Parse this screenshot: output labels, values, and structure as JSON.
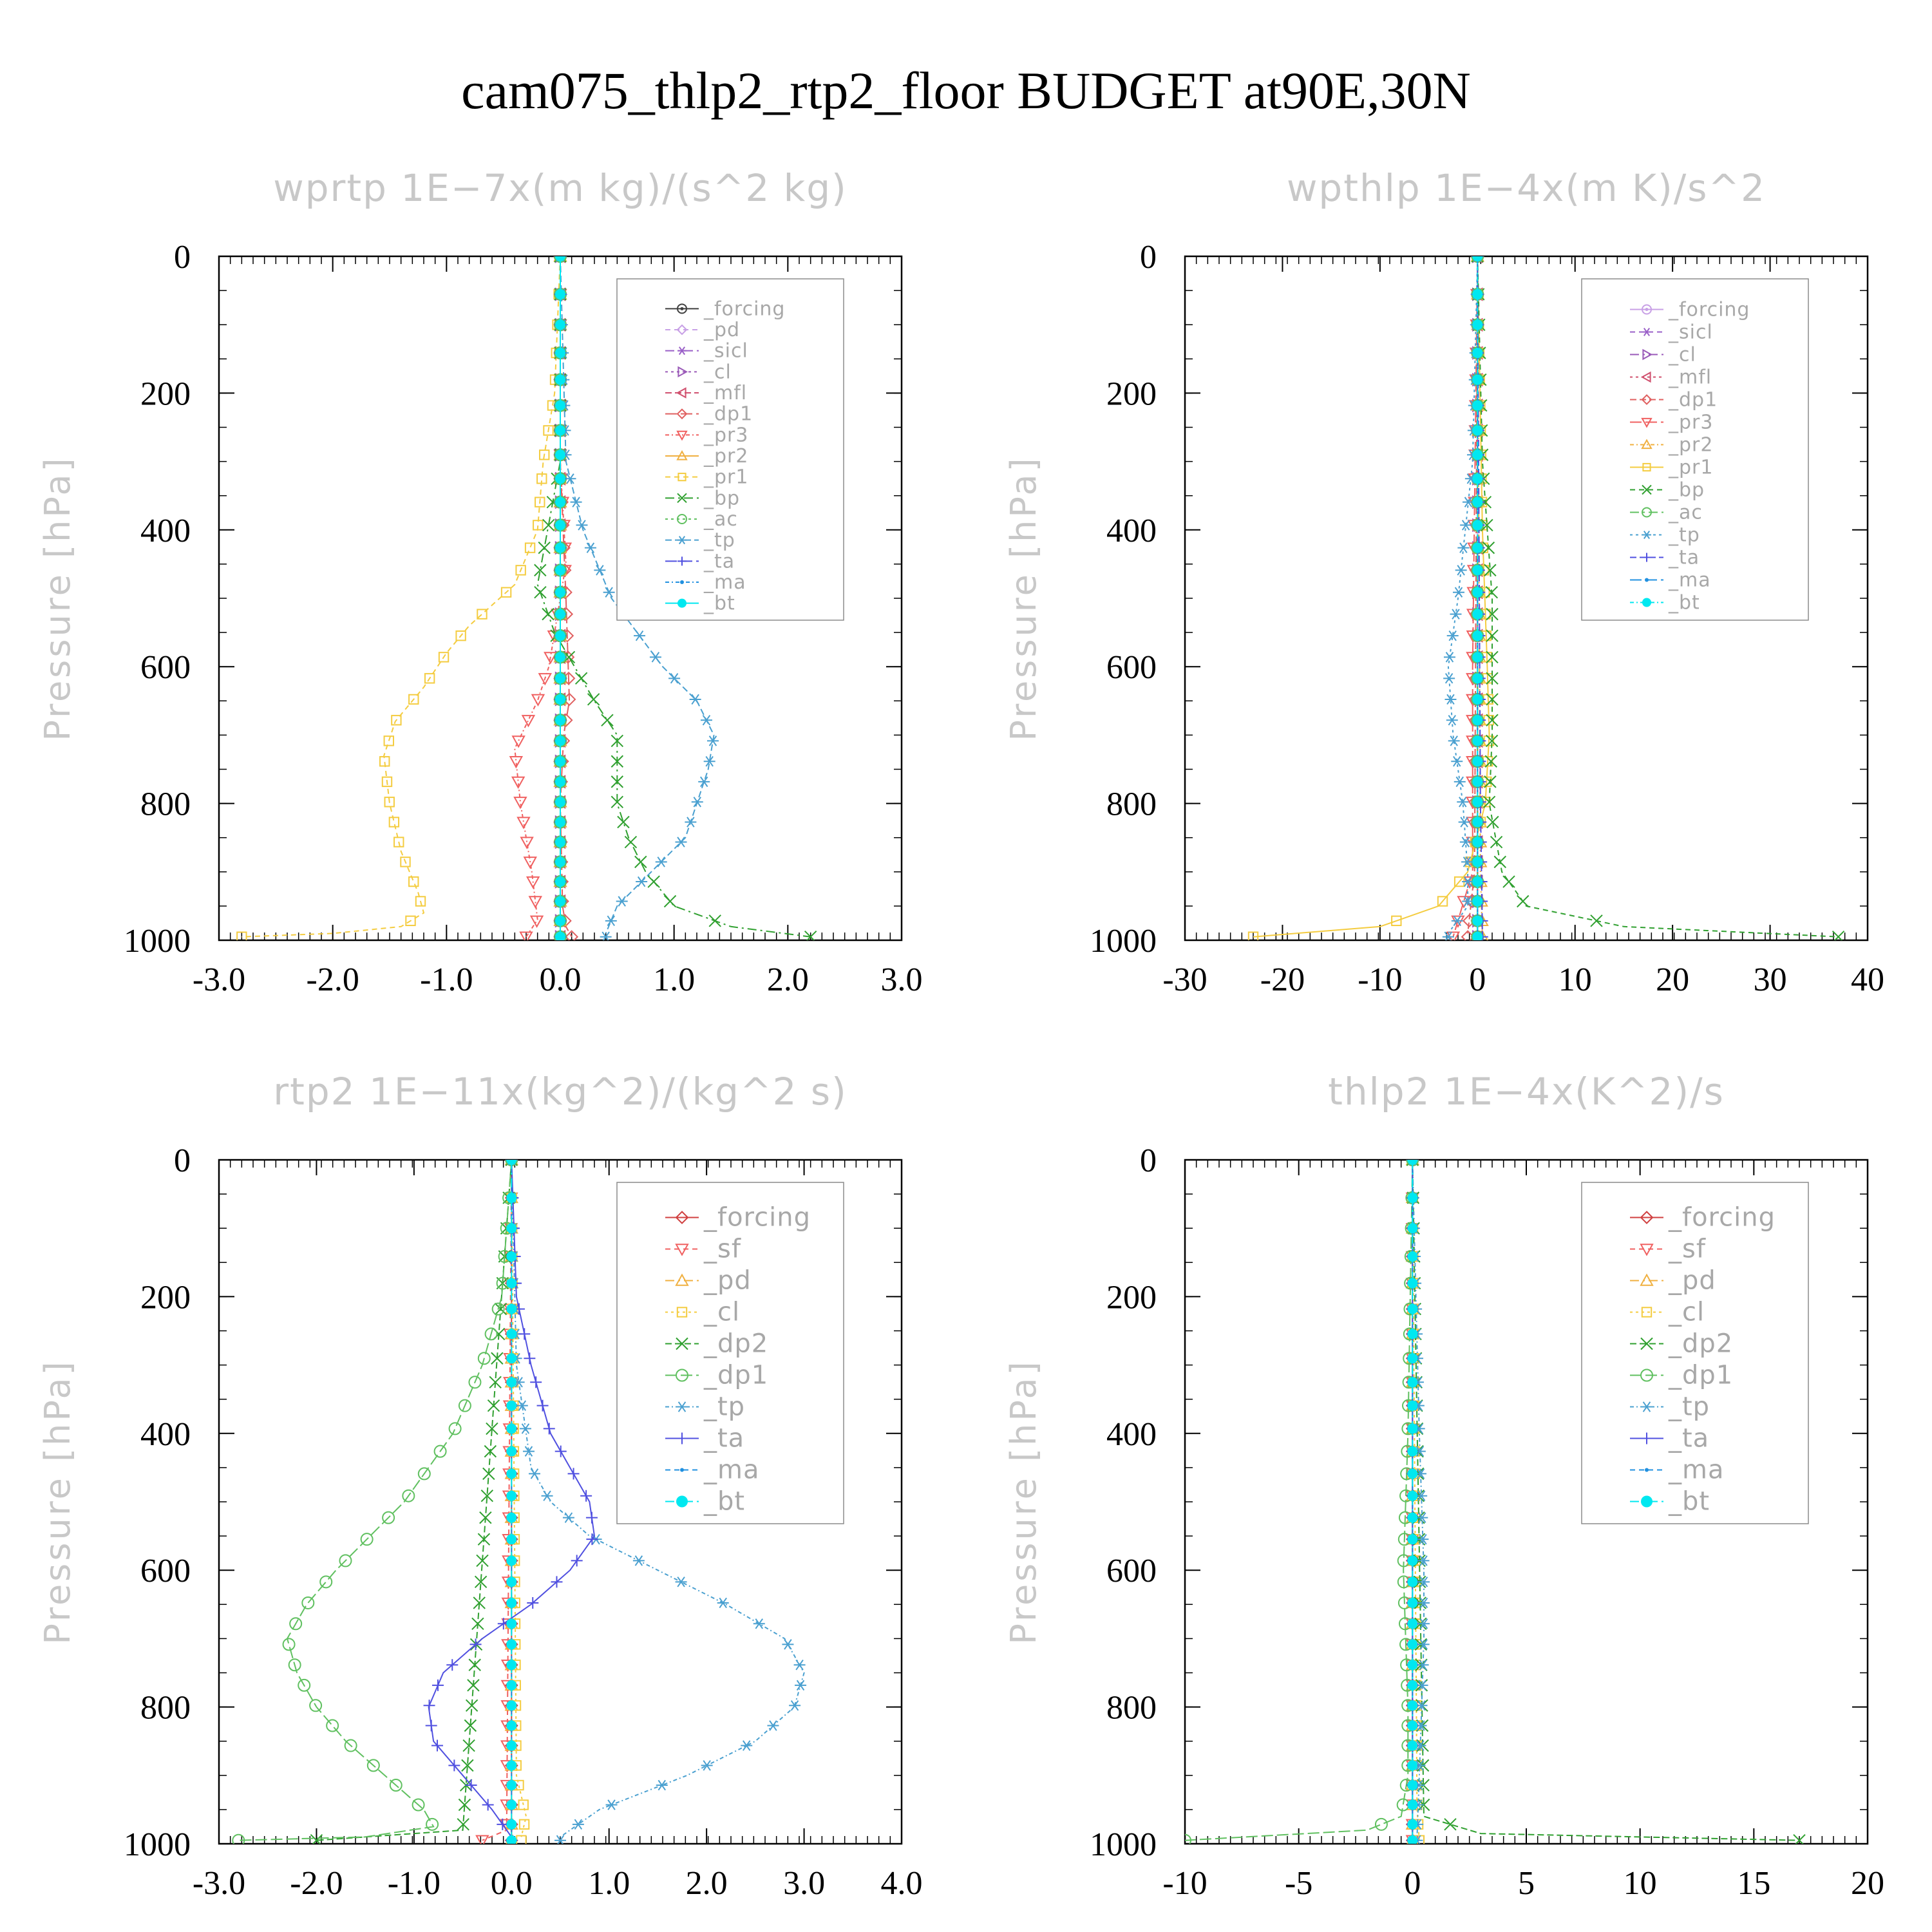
{
  "figure_title": "cam075_thlp2_rtp2_floor  BUDGET at90E,30N",
  "chart_data": [
    {
      "type": "line",
      "title": "wprtp  1E−7x(m kg)/(s^2 kg)",
      "ylabel": "Pressure [hPa]",
      "xlim": [
        -3.0,
        3.0
      ],
      "ylim": [
        1000,
        0
      ],
      "xticks": [
        "-3.0",
        "-2.0",
        "-1.0",
        "0.0",
        "1.0",
        "2.0",
        "3.0"
      ],
      "xtick_values": [
        -3,
        -2,
        -1,
        0,
        1,
        2,
        3
      ],
      "yticks": [
        "0",
        "200",
        "400",
        "600",
        "800",
        "1000"
      ],
      "ytick_values": [
        0,
        200,
        400,
        600,
        800,
        1000
      ],
      "legend_position": "top-right",
      "series": [
        {
          "name": "_forcing",
          "color": "#404040",
          "marker": "circle-dot",
          "p": [
            0,
            1000
          ],
          "x": [
            0,
            0
          ]
        },
        {
          "name": "_pd",
          "color": "#c8a0e6",
          "marker": "diamond",
          "p": [
            0,
            1000
          ],
          "x": [
            0,
            0
          ]
        },
        {
          "name": "_sicl",
          "color": "#9a60c8",
          "marker": "star",
          "p": [
            0,
            1000
          ],
          "x": [
            0,
            0
          ]
        },
        {
          "name": "_cl",
          "color": "#9a5ab8",
          "marker": "tri-right",
          "p": [
            0,
            1000
          ],
          "x": [
            0,
            0
          ]
        },
        {
          "name": "_mfl",
          "color": "#d0506e",
          "marker": "tri-left",
          "p": [
            0,
            1000
          ],
          "x": [
            0,
            0
          ]
        },
        {
          "name": "_dp1",
          "color": "#e06060",
          "marker": "diamond",
          "p": [
            0,
            300,
            500,
            650,
            700,
            800,
            950,
            980,
            995
          ],
          "x": [
            0,
            0,
            0.05,
            0.08,
            0.03,
            0,
            0.02,
            0.05,
            0.1
          ]
        },
        {
          "name": "_pr3",
          "color": "#f06060",
          "marker": "tri-down",
          "p": [
            0,
            300,
            450,
            600,
            650,
            720,
            800,
            900,
            970,
            995
          ],
          "x": [
            0,
            0,
            0.05,
            -0.1,
            -0.2,
            -0.4,
            -0.35,
            -0.25,
            -0.2,
            -0.3
          ]
        },
        {
          "name": "_pr2",
          "color": "#f0b040",
          "marker": "tri-up",
          "p": [
            0,
            500,
            900,
            995
          ],
          "x": [
            0,
            0,
            0,
            0
          ]
        },
        {
          "name": "_pr1",
          "color": "#f4cc40",
          "marker": "square",
          "p": [
            0,
            200,
            300,
            400,
            480,
            540,
            580,
            630,
            680,
            730,
            800,
            870,
            930,
            960,
            980,
            990,
            995
          ],
          "x": [
            0,
            -0.05,
            -0.15,
            -0.2,
            -0.4,
            -0.8,
            -1.0,
            -1.2,
            -1.45,
            -1.55,
            -1.5,
            -1.4,
            -1.25,
            -1.2,
            -1.4,
            -2.0,
            -2.8
          ]
        },
        {
          "name": "_bp",
          "color": "#30a030",
          "marker": "cross",
          "p": [
            0,
            300,
            480,
            550,
            650,
            700,
            750,
            800,
            850,
            900,
            950,
            980,
            995
          ],
          "x": [
            0,
            0,
            -0.2,
            -0.05,
            0.3,
            0.5,
            0.5,
            0.5,
            0.6,
            0.75,
            1.0,
            1.5,
            2.2
          ]
        },
        {
          "name": "_ac",
          "color": "#60c060",
          "marker": "circle",
          "p": [
            0,
            1000
          ],
          "x": [
            0,
            0
          ]
        },
        {
          "name": "_tp",
          "color": "#4aa0d0",
          "marker": "asterisk",
          "p": [
            0,
            300,
            400,
            500,
            600,
            650,
            700,
            750,
            800,
            850,
            900,
            950,
            990
          ],
          "x": [
            0,
            0.05,
            0.2,
            0.45,
            0.9,
            1.2,
            1.35,
            1.3,
            1.2,
            1.1,
            0.8,
            0.5,
            0.4
          ]
        },
        {
          "name": "_ta",
          "color": "#5050e0",
          "marker": "plus",
          "p": [
            0,
            1000
          ],
          "x": [
            0,
            0
          ]
        },
        {
          "name": "_ma",
          "color": "#2090e0",
          "marker": "dot",
          "p": [
            0,
            1000
          ],
          "x": [
            0,
            0
          ]
        },
        {
          "name": "_bt",
          "color": "#00e8f0",
          "marker": "filled-circle",
          "p": [
            0,
            1000
          ],
          "x": [
            0,
            0
          ]
        }
      ]
    },
    {
      "type": "line",
      "title": "wpthlp  1E−4x(m K)/s^2",
      "ylabel": "Pressure [hPa]",
      "xlim": [
        -30,
        40
      ],
      "ylim": [
        1000,
        0
      ],
      "xticks": [
        "-30",
        "-20",
        "-10",
        "0",
        "10",
        "20",
        "30",
        "40"
      ],
      "xtick_values": [
        -30,
        -20,
        -10,
        0,
        10,
        20,
        30,
        40
      ],
      "yticks": [
        "0",
        "200",
        "400",
        "600",
        "800",
        "1000"
      ],
      "ytick_values": [
        0,
        200,
        400,
        600,
        800,
        1000
      ],
      "legend_position": "top-right",
      "series": [
        {
          "name": "_forcing",
          "color": "#c8a0e6",
          "marker": "circle-dot",
          "p": [
            0,
            1000
          ],
          "x": [
            0,
            0
          ]
        },
        {
          "name": "_sicl",
          "color": "#9a60c8",
          "marker": "star",
          "p": [
            0,
            1000
          ],
          "x": [
            0,
            0
          ]
        },
        {
          "name": "_cl",
          "color": "#9a5ab8",
          "marker": "tri-right",
          "p": [
            0,
            1000
          ],
          "x": [
            0,
            0
          ]
        },
        {
          "name": "_mfl",
          "color": "#d0506e",
          "marker": "tri-left",
          "p": [
            0,
            1000
          ],
          "x": [
            0,
            0
          ]
        },
        {
          "name": "_dp1",
          "color": "#e06060",
          "marker": "diamond",
          "p": [
            0,
            900,
            990
          ],
          "x": [
            0,
            -0.3,
            -1.0
          ]
        },
        {
          "name": "_pr3",
          "color": "#f06060",
          "marker": "tri-down",
          "p": [
            0,
            600,
            900,
            995
          ],
          "x": [
            0,
            -0.5,
            -0.5,
            -2.5
          ]
        },
        {
          "name": "_pr2",
          "color": "#f0b040",
          "marker": "tri-up",
          "p": [
            0,
            900,
            995
          ],
          "x": [
            0,
            0.3,
            0.5
          ]
        },
        {
          "name": "_pr1",
          "color": "#f4cc40",
          "marker": "square",
          "p": [
            0,
            400,
            600,
            700,
            800,
            900,
            950,
            980,
            995
          ],
          "x": [
            0,
            0.5,
            1.0,
            1.2,
            0.8,
            -1.0,
            -4.0,
            -10.0,
            -23.0
          ]
        },
        {
          "name": "_bp",
          "color": "#30a030",
          "marker": "cross",
          "p": [
            0,
            300,
            500,
            700,
            800,
            900,
            950,
            980,
            995
          ],
          "x": [
            0,
            0.5,
            1.5,
            1.5,
            1.2,
            2.5,
            5.0,
            15.0,
            37.0
          ]
        },
        {
          "name": "_ac",
          "color": "#60c060",
          "marker": "circle",
          "p": [
            0,
            1000
          ],
          "x": [
            0,
            0
          ]
        },
        {
          "name": "_tp",
          "color": "#4aa0d0",
          "marker": "asterisk",
          "p": [
            0,
            300,
            500,
            600,
            700,
            800,
            900,
            950,
            990
          ],
          "x": [
            0,
            -0.5,
            -2.0,
            -3.0,
            -2.5,
            -1.5,
            -1.0,
            -1.0,
            -3.0
          ]
        },
        {
          "name": "_ta",
          "color": "#5050e0",
          "marker": "plus",
          "p": [
            0,
            800,
            990
          ],
          "x": [
            0,
            0.3,
            0.5
          ]
        },
        {
          "name": "_ma",
          "color": "#2090e0",
          "marker": "dot",
          "p": [
            0,
            1000
          ],
          "x": [
            0,
            0
          ]
        },
        {
          "name": "_bt",
          "color": "#00e8f0",
          "marker": "filled-circle",
          "p": [
            0,
            1000
          ],
          "x": [
            0,
            0
          ]
        }
      ]
    },
    {
      "type": "line",
      "title": "rtp2  1E−11x(kg^2)/(kg^2 s)",
      "ylabel": "Pressure [hPa]",
      "xlim": [
        -3.0,
        4.0
      ],
      "ylim": [
        1000,
        0
      ],
      "xticks": [
        "-3.0",
        "-2.0",
        "-1.0",
        "0.0",
        "1.0",
        "2.0",
        "3.0",
        "4.0"
      ],
      "xtick_values": [
        -3,
        -2,
        -1,
        0,
        1,
        2,
        3,
        4
      ],
      "yticks": [
        "0",
        "200",
        "400",
        "600",
        "800",
        "1000"
      ],
      "ytick_values": [
        0,
        200,
        400,
        600,
        800,
        1000
      ],
      "legend_position": "top-right",
      "series": [
        {
          "name": "_forcing",
          "color": "#d04040",
          "marker": "diamond",
          "p": [
            0,
            1000
          ],
          "x": [
            0,
            0
          ]
        },
        {
          "name": "_sf",
          "color": "#f06060",
          "marker": "tri-down",
          "p": [
            0,
            980,
            995
          ],
          "x": [
            0,
            -0.05,
            -0.3
          ]
        },
        {
          "name": "_pd",
          "color": "#f0b040",
          "marker": "tri-up",
          "p": [
            0,
            1000
          ],
          "x": [
            0,
            0
          ]
        },
        {
          "name": "_cl",
          "color": "#f4cc40",
          "marker": "square",
          "p": [
            0,
            900,
            960,
            990
          ],
          "x": [
            0,
            0.05,
            0.15,
            0.1
          ]
        },
        {
          "name": "_dp2",
          "color": "#30a030",
          "marker": "cross",
          "p": [
            0,
            980,
            995
          ],
          "x": [
            0,
            -0.5,
            -2.0
          ]
        },
        {
          "name": "_dp1",
          "color": "#60c060",
          "marker": "circle",
          "p": [
            0,
            200,
            300,
            400,
            500,
            600,
            650,
            700,
            750,
            800,
            850,
            900,
            950,
            975,
            990,
            995
          ],
          "x": [
            0,
            -0.1,
            -0.3,
            -0.6,
            -1.1,
            -1.8,
            -2.1,
            -2.3,
            -2.2,
            -2.0,
            -1.7,
            -1.3,
            -0.9,
            -0.8,
            -1.5,
            -2.8
          ]
        },
        {
          "name": "_tp",
          "color": "#4aa0d0",
          "marker": "asterisk",
          "p": [
            0,
            300,
            450,
            500,
            550,
            600,
            650,
            700,
            750,
            800,
            850,
            900,
            950,
            990
          ],
          "x": [
            0,
            0.05,
            0.2,
            0.4,
            0.8,
            1.5,
            2.2,
            2.8,
            3.0,
            2.9,
            2.5,
            1.8,
            0.9,
            0.5
          ]
        },
        {
          "name": "_ta",
          "color": "#5050e0",
          "marker": "plus",
          "p": [
            0,
            200,
            300,
            400,
            450,
            500,
            550,
            600,
            650,
            700,
            750,
            800,
            850,
            900,
            950,
            990
          ],
          "x": [
            0,
            0.05,
            0.2,
            0.4,
            0.6,
            0.8,
            0.85,
            0.6,
            0.2,
            -0.3,
            -0.7,
            -0.85,
            -0.8,
            -0.5,
            -0.2,
            0
          ]
        },
        {
          "name": "_ma",
          "color": "#2090e0",
          "marker": "dot",
          "p": [
            0,
            1000
          ],
          "x": [
            0,
            0
          ]
        },
        {
          "name": "_bt",
          "color": "#00e8f0",
          "marker": "filled-circle",
          "p": [
            0,
            1000
          ],
          "x": [
            0,
            0
          ]
        }
      ]
    },
    {
      "type": "line",
      "title": "thlp2  1E−4x(K^2)/s",
      "ylabel": "Pressure [hPa]",
      "xlim": [
        -10,
        20
      ],
      "ylim": [
        1000,
        0
      ],
      "xticks": [
        "-10",
        "-5",
        "0",
        "5",
        "10",
        "15",
        "20"
      ],
      "xtick_values": [
        -10,
        -5,
        0,
        5,
        10,
        15,
        20
      ],
      "yticks": [
        "0",
        "200",
        "400",
        "600",
        "800",
        "1000"
      ],
      "ytick_values": [
        0,
        200,
        400,
        600,
        800,
        1000
      ],
      "legend_position": "top-right",
      "series": [
        {
          "name": "_forcing",
          "color": "#d04040",
          "marker": "diamond",
          "p": [
            0,
            1000
          ],
          "x": [
            0,
            0
          ]
        },
        {
          "name": "_sf",
          "color": "#f06060",
          "marker": "tri-down",
          "p": [
            0,
            1000
          ],
          "x": [
            0,
            0
          ]
        },
        {
          "name": "_pd",
          "color": "#f0b040",
          "marker": "tri-up",
          "p": [
            0,
            1000
          ],
          "x": [
            0,
            0
          ]
        },
        {
          "name": "_cl",
          "color": "#f4cc40",
          "marker": "square",
          "p": [
            0,
            950,
            995
          ],
          "x": [
            0,
            0.2,
            0.3
          ]
        },
        {
          "name": "_dp2",
          "color": "#30a030",
          "marker": "cross",
          "p": [
            0,
            960,
            985,
            995
          ],
          "x": [
            0,
            0.5,
            3.0,
            17.0
          ]
        },
        {
          "name": "_dp1",
          "color": "#60c060",
          "marker": "circle",
          "p": [
            0,
            400,
            600,
            700,
            800,
            900,
            960,
            980,
            995
          ],
          "x": [
            0,
            -0.2,
            -0.4,
            -0.3,
            -0.2,
            -0.2,
            -0.5,
            -2.0,
            -10.0
          ]
        },
        {
          "name": "_tp",
          "color": "#4aa0d0",
          "marker": "asterisk",
          "p": [
            0,
            400,
            600,
            700,
            800,
            900,
            990
          ],
          "x": [
            0,
            0.3,
            0.5,
            0.5,
            0.4,
            0.3,
            0.2
          ]
        },
        {
          "name": "_ta",
          "color": "#5050e0",
          "marker": "plus",
          "p": [
            0,
            1000
          ],
          "x": [
            0,
            0
          ]
        },
        {
          "name": "_ma",
          "color": "#2090e0",
          "marker": "dot",
          "p": [
            0,
            1000
          ],
          "x": [
            0,
            0
          ]
        },
        {
          "name": "_bt",
          "color": "#00e8f0",
          "marker": "filled-circle",
          "p": [
            0,
            1000
          ],
          "x": [
            0,
            0
          ]
        }
      ]
    }
  ]
}
